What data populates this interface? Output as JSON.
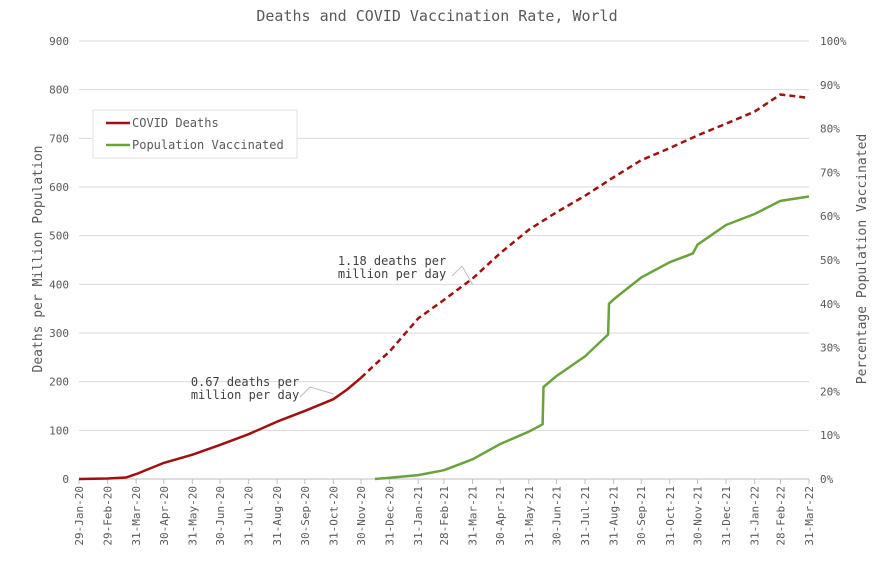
{
  "chart_data": {
    "type": "line",
    "title": "Deaths and COVID Vaccination Rate, World",
    "ylabel": "Deaths per Million Population",
    "y2label": "Percentage Population Vaccinated",
    "ylim": [
      0,
      900
    ],
    "y2lim": [
      0,
      1
    ],
    "yticks": [
      "0",
      "100",
      "200",
      "300",
      "400",
      "500",
      "600",
      "700",
      "800",
      "900"
    ],
    "y2ticks": [
      "0%",
      "10%",
      "20%",
      "30%",
      "40%",
      "50%",
      "60%",
      "70%",
      "80%",
      "90%",
      "100%"
    ],
    "grid": true,
    "legend_position": "top-left",
    "xticks": [
      "29-Jan-20",
      "29-Feb-20",
      "31-Mar-20",
      "30-Apr-20",
      "31-May-20",
      "30-Jun-20",
      "31-Jul-20",
      "31-Aug-20",
      "30-Sep-20",
      "31-Oct-20",
      "30-Nov-20",
      "31-Dec-20",
      "31-Jan-21",
      "28-Feb-21",
      "31-Mar-21",
      "30-Apr-21",
      "31-May-21",
      "30-Jun-21",
      "31-Jul-21",
      "31-Aug-21",
      "30-Sep-21",
      "31-Oct-21",
      "30-Nov-21",
      "31-Dec-21",
      "31-Jan-22",
      "28-Feb-22",
      "31-Mar-22"
    ],
    "series": [
      {
        "name": "COVID Deaths",
        "axis": "left",
        "color": "#a01010",
        "x": [
          "29-Jan-20",
          "29-Feb-20",
          "20-Mar-20",
          "31-Mar-20",
          "30-Apr-20",
          "31-May-20",
          "30-Jun-20",
          "31-Jul-20",
          "31-Aug-20",
          "30-Sep-20",
          "31-Oct-20",
          "15-Nov-20",
          "30-Nov-20",
          "15-Dec-20",
          "31-Dec-20",
          "31-Jan-21",
          "28-Feb-21",
          "31-Mar-21",
          "30-Apr-21",
          "31-May-21",
          "30-Jun-21",
          "31-Jul-21",
          "31-Aug-21",
          "30-Sep-21",
          "31-Oct-21",
          "30-Nov-21",
          "31-Dec-21",
          "31-Jan-22",
          "28-Feb-22",
          "31-Mar-22"
        ],
        "values": [
          0,
          1,
          3,
          10,
          33,
          50,
          70,
          92,
          118,
          140,
          164,
          184,
          208,
          235,
          262,
          330,
          368,
          412,
          464,
          512,
          548,
          582,
          620,
          655,
          680,
          706,
          730,
          755,
          790,
          783
        ],
        "dashed_from": "30-Nov-20"
      },
      {
        "name": "Population Vaccinated",
        "axis": "right",
        "color": "#6aa23c",
        "x": [
          "15-Dec-20",
          "31-Dec-20",
          "31-Jan-21",
          "28-Feb-21",
          "31-Mar-21",
          "30-Apr-21",
          "31-May-21",
          "15-Jun-21",
          "16-Jun-21",
          "30-Jun-21",
          "31-Jul-21",
          "25-Aug-21",
          "26-Aug-21",
          "31-Aug-21",
          "30-Sep-21",
          "31-Oct-21",
          "25-Nov-21",
          "30-Nov-21",
          "31-Dec-21",
          "31-Jan-22",
          "28-Feb-22",
          "31-Mar-22"
        ],
        "values": [
          0,
          0.003,
          0.009,
          0.02,
          0.045,
          0.08,
          0.108,
          0.125,
          0.21,
          0.235,
          0.28,
          0.33,
          0.4,
          0.41,
          0.46,
          0.495,
          0.515,
          0.535,
          0.58,
          0.605,
          0.635,
          0.645
        ]
      }
    ],
    "annotations": [
      {
        "text": [
          "0.67 deaths per",
          "million per day"
        ],
        "x": "31-Oct-20",
        "y": 175
      },
      {
        "text": [
          "1.18 deaths per",
          "million per day"
        ],
        "x": "31-Mar-21",
        "y": 400
      }
    ]
  }
}
